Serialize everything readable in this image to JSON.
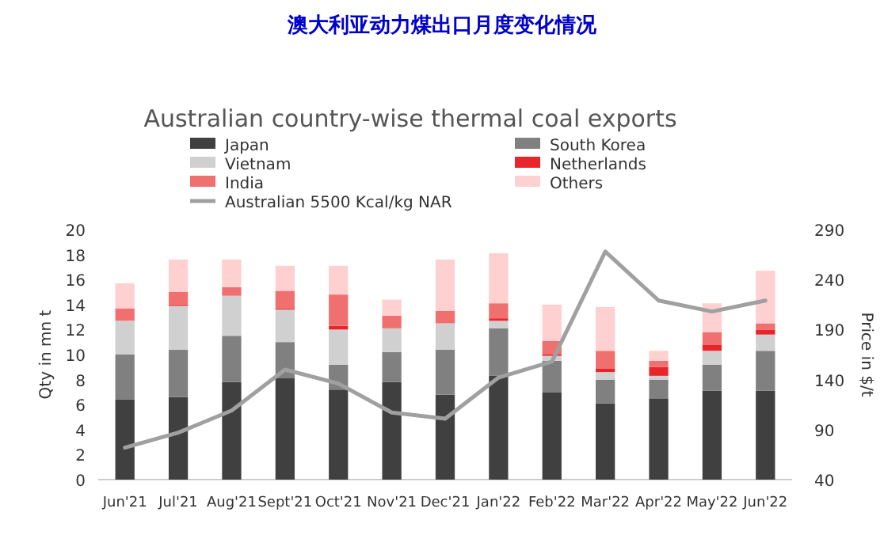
{
  "chart_data": {
    "type": "bar",
    "title": "澳大利亚动力煤出口月度变化情况",
    "subtitle": "Australian country-wise thermal coal exports",
    "categories": [
      "Jun'21",
      "Jul'21",
      "Aug'21",
      "Sept'21",
      "Oct'21",
      "Nov'21",
      "Dec'21",
      "Jan'22",
      "Feb'22",
      "Mar'22",
      "Apr'22",
      "May'22",
      "Jun'22"
    ],
    "stacked": true,
    "legend": "top",
    "ylabel": "Qty in mn t",
    "y2label": "Price in $/t",
    "ylim": [
      0,
      20
    ],
    "yticks": [
      0,
      2,
      4,
      6,
      8,
      10,
      12,
      14,
      16,
      18,
      20
    ],
    "y2lim": [
      40,
      290
    ],
    "y2ticks": [
      40,
      90,
      140,
      190,
      240,
      290
    ],
    "series": [
      {
        "name": "Japan",
        "color": "#404040",
        "values": [
          6.4,
          6.6,
          7.8,
          8.1,
          7.2,
          7.8,
          6.8,
          8.3,
          7.0,
          6.1,
          6.5,
          7.1,
          7.1
        ]
      },
      {
        "name": "South Korea",
        "color": "#808080",
        "values": [
          3.6,
          3.8,
          3.7,
          2.9,
          2.0,
          2.4,
          3.6,
          3.8,
          2.5,
          1.9,
          1.5,
          2.1,
          3.2
        ]
      },
      {
        "name": "Vietnam",
        "color": "#d0d0d0",
        "values": [
          2.7,
          3.5,
          3.2,
          2.6,
          2.8,
          1.9,
          2.1,
          0.6,
          0.4,
          0.6,
          0.3,
          1.1,
          1.3
        ]
      },
      {
        "name": "Netherlands",
        "color": "#e8252b",
        "values": [
          0,
          0.1,
          0,
          0.1,
          0.3,
          0,
          0,
          0.2,
          0.1,
          0.3,
          0.7,
          0.5,
          0.4
        ]
      },
      {
        "name": "India",
        "color": "#f07070",
        "values": [
          1.0,
          1.0,
          0.7,
          1.4,
          2.5,
          1.0,
          1.0,
          1.2,
          1.1,
          1.4,
          0.5,
          1.0,
          0.5
        ]
      },
      {
        "name": "Others",
        "color": "#ffd0d0",
        "values": [
          2.0,
          2.6,
          2.2,
          2.0,
          2.3,
          1.3,
          4.1,
          4.0,
          2.9,
          3.5,
          0.8,
          2.3,
          4.2
        ]
      },
      {
        "name": "Australian 5500 Kcal/kg NAR",
        "type": "line",
        "axis": "y2",
        "color": "#a0a0a0",
        "values": [
          72,
          87,
          109,
          150,
          136,
          107,
          101,
          142,
          158,
          268,
          219,
          208,
          219
        ]
      }
    ]
  }
}
